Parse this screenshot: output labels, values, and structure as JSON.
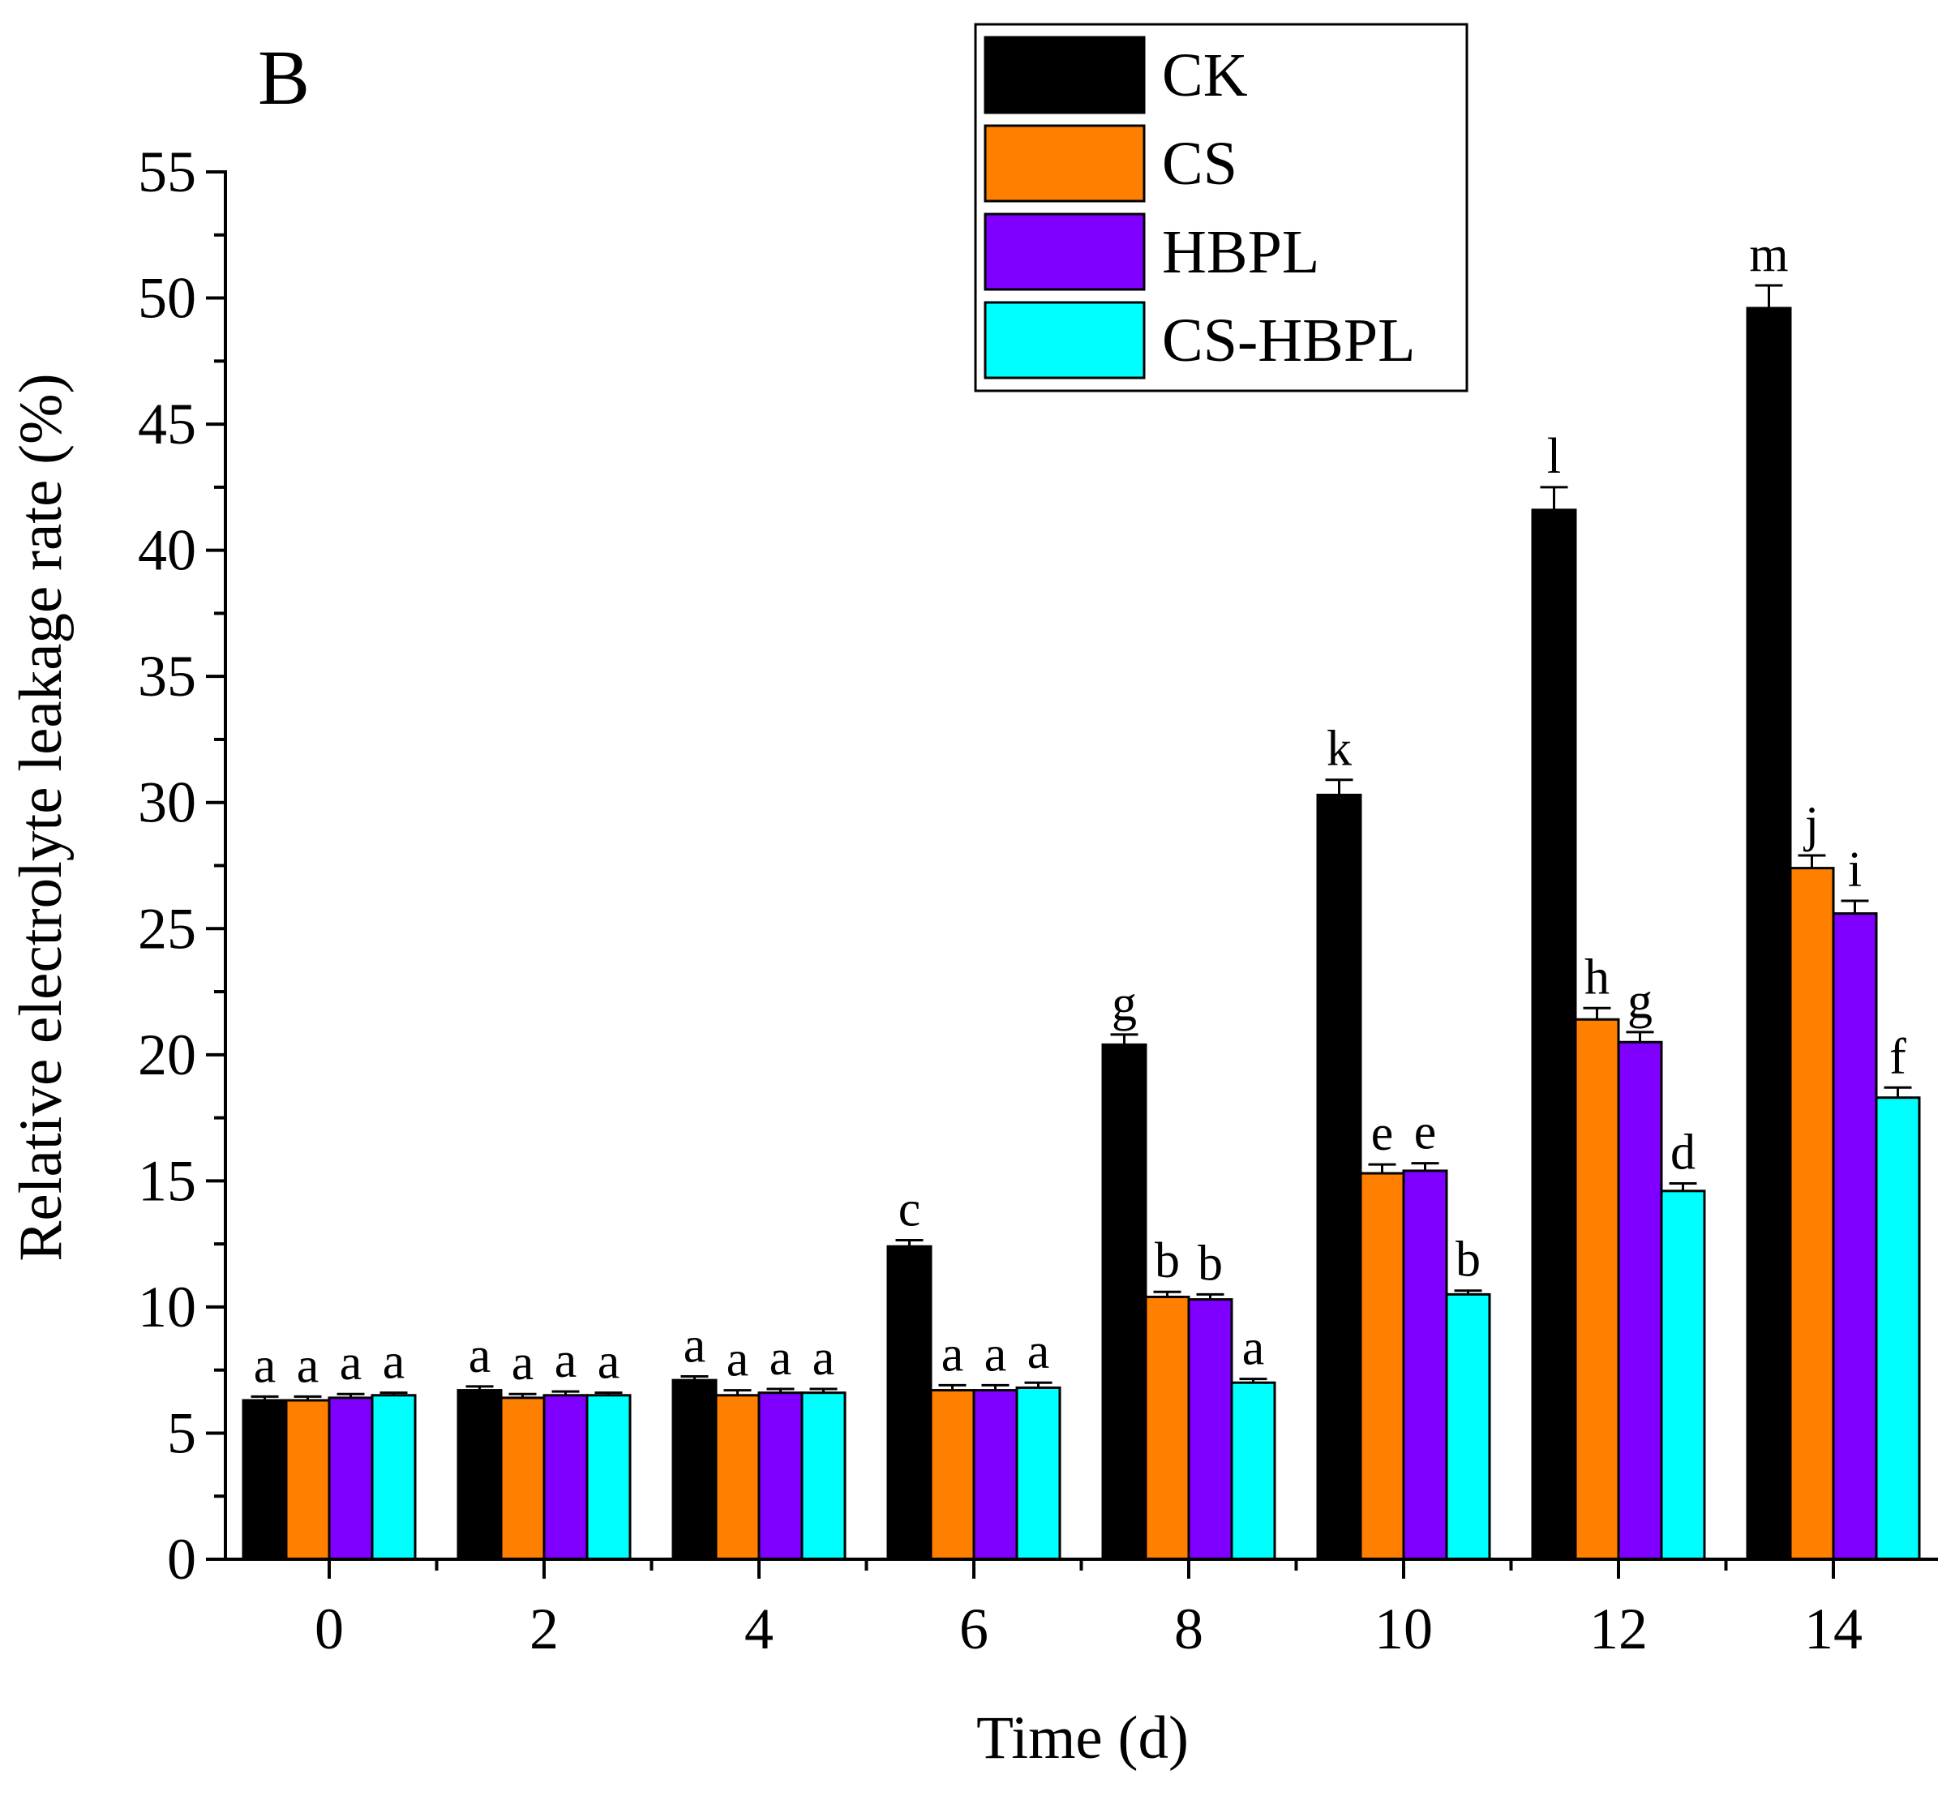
{
  "panel_label": "B",
  "chart_data": {
    "type": "bar",
    "xlabel": "Time (d)",
    "ylabel": "Relative electrolyte leakage rate (%)",
    "ylim": [
      0,
      55
    ],
    "yticks": [
      0,
      5,
      10,
      15,
      20,
      25,
      30,
      35,
      40,
      45,
      50,
      55
    ],
    "categories": [
      "0",
      "2",
      "4",
      "6",
      "8",
      "10",
      "12",
      "14"
    ],
    "legend_position": "top-right",
    "grid": false,
    "series": [
      {
        "name": "CK",
        "color": "#000000",
        "values": [
          6.3,
          6.7,
          7.1,
          12.4,
          20.4,
          30.3,
          41.6,
          49.6
        ],
        "errors": [
          0.15,
          0.15,
          0.15,
          0.25,
          0.4,
          0.6,
          0.9,
          0.9
        ],
        "letters": [
          "a",
          "a",
          "a",
          "c",
          "g",
          "k",
          "l",
          "m"
        ]
      },
      {
        "name": "CS",
        "color": "#ff7f00",
        "values": [
          6.3,
          6.4,
          6.5,
          6.7,
          10.4,
          15.3,
          21.4,
          27.4
        ],
        "errors": [
          0.15,
          0.15,
          0.2,
          0.2,
          0.2,
          0.35,
          0.45,
          0.5
        ],
        "letters": [
          "a",
          "a",
          "a",
          "a",
          "b",
          "e",
          "h",
          "j"
        ]
      },
      {
        "name": "HBPL",
        "color": "#8000ff",
        "values": [
          6.4,
          6.5,
          6.6,
          6.7,
          10.3,
          15.4,
          20.5,
          25.6
        ],
        "errors": [
          0.15,
          0.15,
          0.15,
          0.2,
          0.2,
          0.3,
          0.4,
          0.5
        ],
        "letters": [
          "a",
          "a",
          "a",
          "a",
          "b",
          "e",
          "g",
          "i"
        ]
      },
      {
        "name": "CS-HBPL",
        "color": "#00ffff",
        "values": [
          6.5,
          6.5,
          6.6,
          6.8,
          7.0,
          10.5,
          14.6,
          18.3
        ],
        "errors": [
          0.1,
          0.1,
          0.15,
          0.2,
          0.15,
          0.15,
          0.3,
          0.4
        ],
        "letters": [
          "a",
          "a",
          "a",
          "a",
          "a",
          "b",
          "d",
          "f"
        ]
      }
    ]
  }
}
